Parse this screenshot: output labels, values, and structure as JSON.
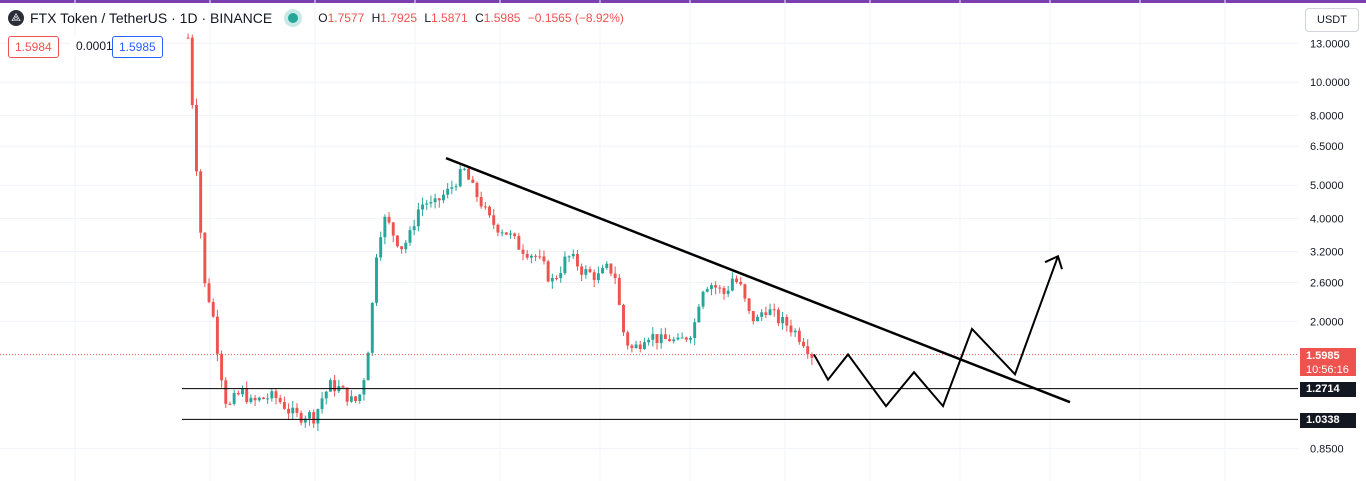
{
  "header": {
    "title": "FTX Token / TetherUS · 1D · BINANCE",
    "ohlc": {
      "o": "1.7577",
      "h": "1.7925",
      "l": "1.5871",
      "c": "1.5985",
      "change": "−0.1565 (−8.92%)"
    }
  },
  "quotes": {
    "bid": "1.5984",
    "spread": "0.0001",
    "ask": "1.5985"
  },
  "currency": "USDT",
  "colors": {
    "up": "#26a69a",
    "down": "#ef5350",
    "accent": "#7b3fb0",
    "drawing": "#000000"
  },
  "chart_data": {
    "type": "candlestick",
    "y_scale": "log",
    "ylim": [
      0.75,
      15
    ],
    "y_ticks": [
      "13.0000",
      "10.0000",
      "8.0000",
      "6.5000",
      "5.0000",
      "4.0000",
      "3.2000",
      "2.6000",
      "2.0000",
      "0.8500"
    ],
    "close_series_approx": [
      13.5,
      6.0,
      2.6,
      2.2,
      1.5,
      1.1,
      1.2,
      1.25,
      1.15,
      1.18,
      1.2,
      1.2,
      1.15,
      1.08,
      1.05,
      1.07,
      1.05,
      1.2,
      1.3,
      1.28,
      1.22,
      1.15,
      1.25,
      1.8,
      3.5,
      4.0,
      3.6,
      3.3,
      3.5,
      4.2,
      4.5,
      4.3,
      4.6,
      4.8,
      5.2,
      5.5,
      4.9,
      4.5,
      4.0,
      3.8,
      3.7,
      3.5,
      3.3,
      3.2,
      3.1,
      2.9,
      2.6,
      2.8,
      3.1,
      3.0,
      2.8,
      2.75,
      2.7,
      2.85,
      2.8,
      1.9,
      1.65,
      1.7,
      1.85,
      1.8,
      1.75,
      1.78,
      1.72,
      1.8,
      1.9,
      2.5,
      2.6,
      2.5,
      2.4,
      2.7,
      2.5,
      2.1,
      2.0,
      2.2,
      2.1,
      2.0,
      1.95,
      1.85,
      1.75,
      1.6
    ],
    "last_price": "1.5985",
    "countdown": "10:56:16",
    "levels": [
      "1.2714",
      "1.0338"
    ],
    "level_values": [
      1.2714,
      1.0338
    ],
    "trendline": {
      "from_price": 6.0,
      "to_price": 1.16
    },
    "projection_prices": [
      1.6,
      1.35,
      1.6,
      1.13,
      1.42,
      1.13,
      1.9,
      1.4,
      3.1,
      2.8
    ]
  }
}
